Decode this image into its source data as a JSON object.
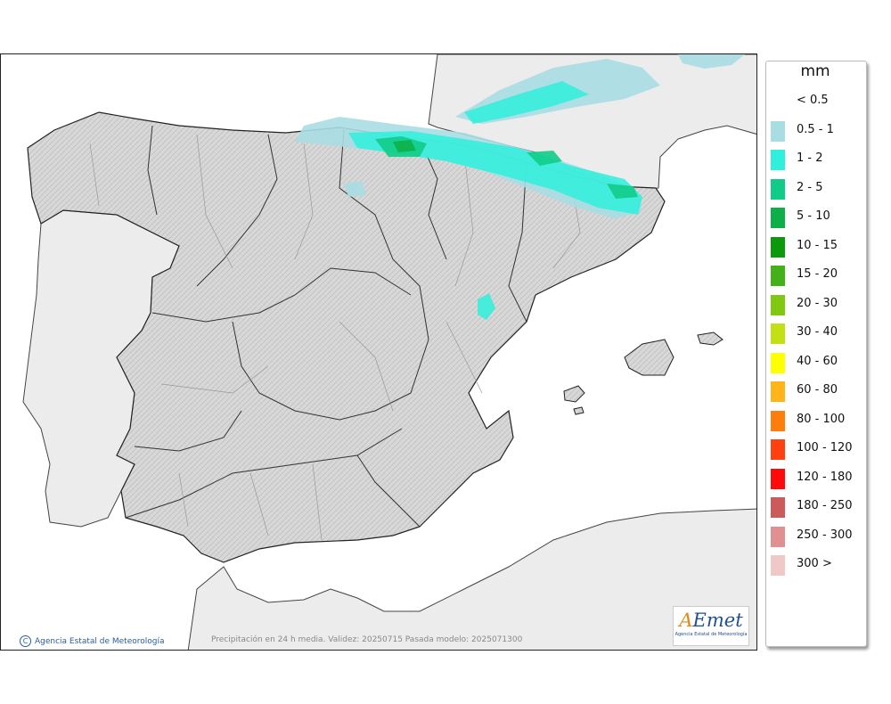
{
  "legend": {
    "unit": "mm",
    "items": [
      {
        "label": "< 0.5",
        "color": "#ffffff"
      },
      {
        "label": "0.5 - 1",
        "color": "#a9dde4"
      },
      {
        "label": "1 - 2",
        "color": "#2ff0dc"
      },
      {
        "label": "2 - 5",
        "color": "#11cc88"
      },
      {
        "label": "5 - 10",
        "color": "#0db048"
      },
      {
        "label": "10 - 15",
        "color": "#0c9a0c"
      },
      {
        "label": "15 - 20",
        "color": "#44b01a"
      },
      {
        "label": "20 - 30",
        "color": "#80c812"
      },
      {
        "label": "30 - 40",
        "color": "#c2e014"
      },
      {
        "label": "40 - 60",
        "color": "#ffff00"
      },
      {
        "label": "60 - 80",
        "color": "#ffb41a"
      },
      {
        "label": "80 - 100",
        "color": "#ff7d0d"
      },
      {
        "label": "100 - 120",
        "color": "#ff4010"
      },
      {
        "label": "120 - 180",
        "color": "#ff0a0a"
      },
      {
        "label": "180 - 250",
        "color": "#cc5a5a"
      },
      {
        "label": "250 - 300",
        "color": "#e09090"
      },
      {
        "label": "300 >",
        "color": "#f0c8c8"
      }
    ]
  },
  "footer": {
    "credit": "Agencia Estatal de Meteorología",
    "caption": "Precipitación en 24 h media. Validez: 20250715 Pasada modelo: 2025071300"
  },
  "logo": {
    "text": "AEmet",
    "subtitle": "Agencia Estatal de Meteorología"
  }
}
